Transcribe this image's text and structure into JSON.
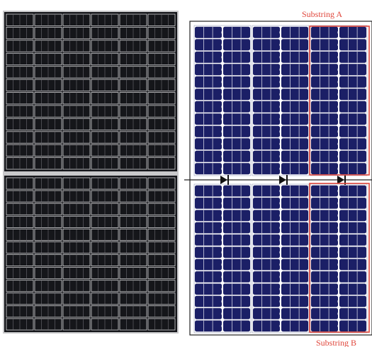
{
  "labels": {
    "substring_a": "Substring A",
    "substring_b": "Substring B"
  },
  "colors": {
    "mono_cell": "#15161a",
    "mono_grid": "#d4d4d6",
    "mono_frame": "#c9c9cb",
    "blue_cell": "#1b1f66",
    "blue_busbar": "#e8e8f2",
    "highlight": "#e0463b",
    "label_text": "#e0463b",
    "diode_line": "#222222"
  },
  "left_panel": {
    "description_icon": "monocrystalline-half-cut-panel",
    "cell_columns": 6,
    "cell_rows_per_half": 12,
    "halves": 2
  },
  "right_panel": {
    "description_icon": "half-cut-cell-schematic",
    "strings": 3,
    "cell_columns_per_string": 2,
    "cell_rows_per_half": 12,
    "bypass_diodes": 3
  }
}
